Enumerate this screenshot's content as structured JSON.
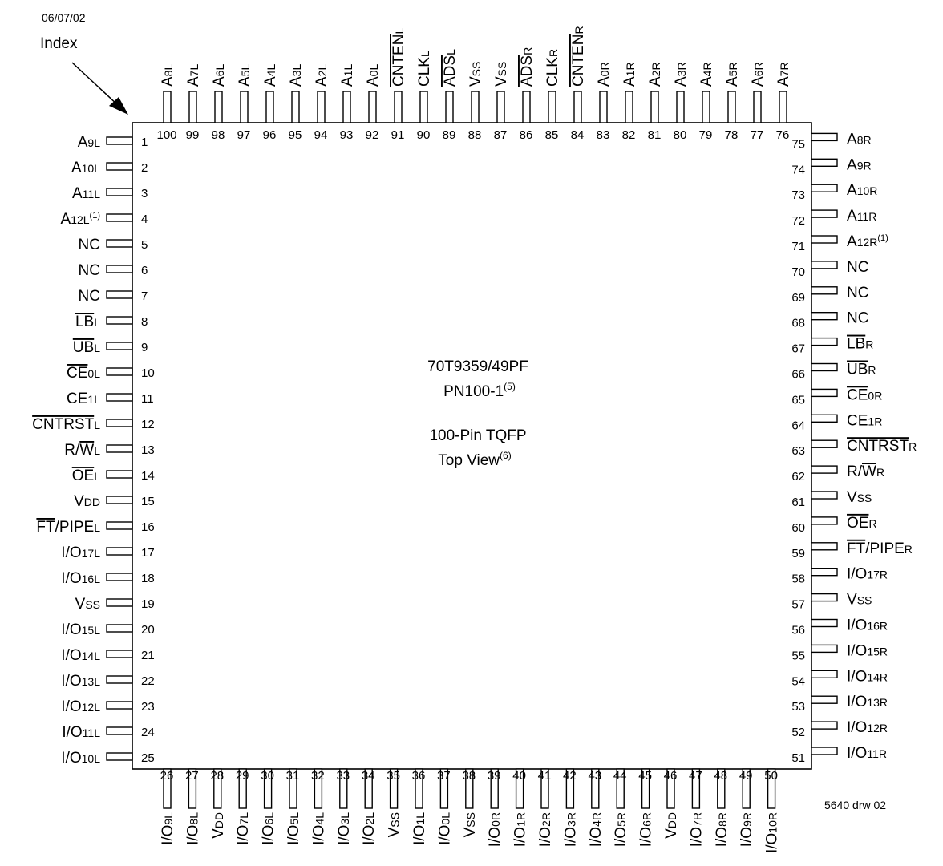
{
  "date": "06/07/02",
  "index_label": "Index",
  "chip": {
    "part_number": "70T9359/49PF",
    "package_code": "PN100-1",
    "package_code_note": "(5)",
    "package_desc": "100-Pin TQFP",
    "view": "Top View",
    "view_note": "(6)"
  },
  "drawing_number": "5640 drw 02",
  "pins_left": [
    {
      "n": "1",
      "name": [
        [
          "A",
          ""
        ],
        [
          "9L",
          "sub"
        ]
      ]
    },
    {
      "n": "2",
      "name": [
        [
          "A",
          ""
        ],
        [
          "10L",
          "sub"
        ]
      ]
    },
    {
      "n": "3",
      "name": [
        [
          "A",
          ""
        ],
        [
          "11L",
          "sub"
        ]
      ]
    },
    {
      "n": "4",
      "name": [
        [
          "A",
          ""
        ],
        [
          "12L",
          "sub"
        ],
        [
          "(1)",
          "sup"
        ]
      ]
    },
    {
      "n": "5",
      "name": [
        [
          "NC",
          ""
        ]
      ]
    },
    {
      "n": "6",
      "name": [
        [
          "NC",
          ""
        ]
      ]
    },
    {
      "n": "7",
      "name": [
        [
          "NC",
          ""
        ]
      ]
    },
    {
      "n": "8",
      "name": [
        [
          "LB",
          "over"
        ],
        [
          "L",
          "sub"
        ]
      ]
    },
    {
      "n": "9",
      "name": [
        [
          "UB",
          "over"
        ],
        [
          "L",
          "sub"
        ]
      ]
    },
    {
      "n": "10",
      "name": [
        [
          "CE",
          "over"
        ],
        [
          "0L",
          "sub"
        ]
      ]
    },
    {
      "n": "11",
      "name": [
        [
          "CE",
          ""
        ],
        [
          "1L",
          "sub"
        ]
      ]
    },
    {
      "n": "12",
      "name": [
        [
          "CNTRST",
          "over"
        ],
        [
          "L",
          "sub"
        ]
      ]
    },
    {
      "n": "13",
      "name": [
        [
          "R/",
          ""
        ],
        [
          "W",
          "over"
        ],
        [
          "L",
          "sub"
        ]
      ]
    },
    {
      "n": "14",
      "name": [
        [
          "OE",
          "over"
        ],
        [
          "L",
          "sub"
        ]
      ]
    },
    {
      "n": "15",
      "name": [
        [
          "V",
          ""
        ],
        [
          "DD",
          "sub"
        ]
      ]
    },
    {
      "n": "16",
      "name": [
        [
          "FT",
          "over"
        ],
        [
          "/PIPE",
          ""
        ],
        [
          "L",
          "sub"
        ]
      ]
    },
    {
      "n": "17",
      "name": [
        [
          "I/O",
          ""
        ],
        [
          "17L",
          "sub"
        ]
      ]
    },
    {
      "n": "18",
      "name": [
        [
          "I/O",
          ""
        ],
        [
          "16L",
          "sub"
        ]
      ]
    },
    {
      "n": "19",
      "name": [
        [
          "V",
          ""
        ],
        [
          "SS",
          "sub"
        ]
      ]
    },
    {
      "n": "20",
      "name": [
        [
          "I/O",
          ""
        ],
        [
          "15L",
          "sub"
        ]
      ]
    },
    {
      "n": "21",
      "name": [
        [
          "I/O",
          ""
        ],
        [
          "14L",
          "sub"
        ]
      ]
    },
    {
      "n": "22",
      "name": [
        [
          "I/O",
          ""
        ],
        [
          "13L",
          "sub"
        ]
      ]
    },
    {
      "n": "23",
      "name": [
        [
          "I/O",
          ""
        ],
        [
          "12L",
          "sub"
        ]
      ]
    },
    {
      "n": "24",
      "name": [
        [
          "I/O",
          ""
        ],
        [
          "11L",
          "sub"
        ]
      ]
    },
    {
      "n": "25",
      "name": [
        [
          "I/O",
          ""
        ],
        [
          "10L",
          "sub"
        ]
      ]
    }
  ],
  "pins_bottom": [
    {
      "n": "26",
      "name": [
        [
          "I/O",
          ""
        ],
        [
          "9L",
          "sub"
        ]
      ]
    },
    {
      "n": "27",
      "name": [
        [
          "I/O",
          ""
        ],
        [
          "8L",
          "sub"
        ]
      ]
    },
    {
      "n": "28",
      "name": [
        [
          "V",
          ""
        ],
        [
          "DD",
          "sub"
        ]
      ]
    },
    {
      "n": "29",
      "name": [
        [
          "I/O",
          ""
        ],
        [
          "7L",
          "sub"
        ]
      ]
    },
    {
      "n": "30",
      "name": [
        [
          "I/O",
          ""
        ],
        [
          "6L",
          "sub"
        ]
      ]
    },
    {
      "n": "31",
      "name": [
        [
          "I/O",
          ""
        ],
        [
          "5L",
          "sub"
        ]
      ]
    },
    {
      "n": "32",
      "name": [
        [
          "I/O",
          ""
        ],
        [
          "4L",
          "sub"
        ]
      ]
    },
    {
      "n": "33",
      "name": [
        [
          "I/O",
          ""
        ],
        [
          "3L",
          "sub"
        ]
      ]
    },
    {
      "n": "34",
      "name": [
        [
          "I/O",
          ""
        ],
        [
          "2L",
          "sub"
        ]
      ]
    },
    {
      "n": "35",
      "name": [
        [
          "V",
          ""
        ],
        [
          "SS",
          "sub"
        ]
      ]
    },
    {
      "n": "36",
      "name": [
        [
          "I/O",
          ""
        ],
        [
          "1L",
          "sub"
        ]
      ]
    },
    {
      "n": "37",
      "name": [
        [
          "I/O",
          ""
        ],
        [
          "0L",
          "sub"
        ]
      ]
    },
    {
      "n": "38",
      "name": [
        [
          "V",
          ""
        ],
        [
          "SS",
          "sub"
        ]
      ]
    },
    {
      "n": "39",
      "name": [
        [
          "I/O",
          ""
        ],
        [
          "0R",
          "sub"
        ]
      ]
    },
    {
      "n": "40",
      "name": [
        [
          "I/O",
          ""
        ],
        [
          "1R",
          "sub"
        ]
      ]
    },
    {
      "n": "41",
      "name": [
        [
          "I/O",
          ""
        ],
        [
          "2R",
          "sub"
        ]
      ]
    },
    {
      "n": "42",
      "name": [
        [
          "I/O",
          ""
        ],
        [
          "3R",
          "sub"
        ]
      ]
    },
    {
      "n": "43",
      "name": [
        [
          "I/O",
          ""
        ],
        [
          "4R",
          "sub"
        ]
      ]
    },
    {
      "n": "44",
      "name": [
        [
          "I/O",
          ""
        ],
        [
          "5R",
          "sub"
        ]
      ]
    },
    {
      "n": "45",
      "name": [
        [
          "I/O",
          ""
        ],
        [
          "6R",
          "sub"
        ]
      ]
    },
    {
      "n": "46",
      "name": [
        [
          "V",
          ""
        ],
        [
          "DD",
          "sub"
        ]
      ]
    },
    {
      "n": "47",
      "name": [
        [
          "I/O",
          ""
        ],
        [
          "7R",
          "sub"
        ]
      ]
    },
    {
      "n": "48",
      "name": [
        [
          "I/O",
          ""
        ],
        [
          "8R",
          "sub"
        ]
      ]
    },
    {
      "n": "49",
      "name": [
        [
          "I/O",
          ""
        ],
        [
          "9R",
          "sub"
        ]
      ]
    },
    {
      "n": "50",
      "name": [
        [
          "I/O",
          ""
        ],
        [
          "10R",
          "sub"
        ]
      ]
    }
  ],
  "pins_right": [
    {
      "n": "51",
      "name": [
        [
          "I/O",
          ""
        ],
        [
          "11R",
          "sub"
        ]
      ]
    },
    {
      "n": "52",
      "name": [
        [
          "I/O",
          ""
        ],
        [
          "12R",
          "sub"
        ]
      ]
    },
    {
      "n": "53",
      "name": [
        [
          "I/O",
          ""
        ],
        [
          "13R",
          "sub"
        ]
      ]
    },
    {
      "n": "54",
      "name": [
        [
          "I/O",
          ""
        ],
        [
          "14R",
          "sub"
        ]
      ]
    },
    {
      "n": "55",
      "name": [
        [
          "I/O",
          ""
        ],
        [
          "15R",
          "sub"
        ]
      ]
    },
    {
      "n": "56",
      "name": [
        [
          "I/O",
          ""
        ],
        [
          "16R",
          "sub"
        ]
      ]
    },
    {
      "n": "57",
      "name": [
        [
          "V",
          ""
        ],
        [
          "SS",
          "sub"
        ]
      ]
    },
    {
      "n": "58",
      "name": [
        [
          "I/O",
          ""
        ],
        [
          "17R",
          "sub"
        ]
      ]
    },
    {
      "n": "59",
      "name": [
        [
          "FT",
          "over"
        ],
        [
          "/PIPE",
          ""
        ],
        [
          "R",
          "sub"
        ]
      ]
    },
    {
      "n": "60",
      "name": [
        [
          "OE",
          "over"
        ],
        [
          "R",
          "sub"
        ]
      ]
    },
    {
      "n": "61",
      "name": [
        [
          "V",
          ""
        ],
        [
          "SS",
          "sub"
        ]
      ]
    },
    {
      "n": "62",
      "name": [
        [
          "R/",
          ""
        ],
        [
          "W",
          "over"
        ],
        [
          "R",
          "sub"
        ]
      ]
    },
    {
      "n": "63",
      "name": [
        [
          "CNTRST",
          "over"
        ],
        [
          "R",
          "sub"
        ]
      ]
    },
    {
      "n": "64",
      "name": [
        [
          "CE",
          ""
        ],
        [
          "1R",
          "sub"
        ]
      ]
    },
    {
      "n": "65",
      "name": [
        [
          "CE",
          "over"
        ],
        [
          "0R",
          "sub"
        ]
      ]
    },
    {
      "n": "66",
      "name": [
        [
          "UB",
          "over"
        ],
        [
          "R",
          "sub"
        ]
      ]
    },
    {
      "n": "67",
      "name": [
        [
          "LB",
          "over"
        ],
        [
          "R",
          "sub"
        ]
      ]
    },
    {
      "n": "68",
      "name": [
        [
          "NC",
          ""
        ]
      ]
    },
    {
      "n": "69",
      "name": [
        [
          "NC",
          ""
        ]
      ]
    },
    {
      "n": "70",
      "name": [
        [
          "NC",
          ""
        ]
      ]
    },
    {
      "n": "71",
      "name": [
        [
          "A",
          ""
        ],
        [
          "12R",
          "sub"
        ],
        [
          "(1)",
          "sup"
        ]
      ]
    },
    {
      "n": "72",
      "name": [
        [
          "A",
          ""
        ],
        [
          "11R",
          "sub"
        ]
      ]
    },
    {
      "n": "73",
      "name": [
        [
          "A",
          ""
        ],
        [
          "10R",
          "sub"
        ]
      ]
    },
    {
      "n": "74",
      "name": [
        [
          "A",
          ""
        ],
        [
          "9R",
          "sub"
        ]
      ]
    },
    {
      "n": "75",
      "name": [
        [
          "A",
          ""
        ],
        [
          "8R",
          "sub"
        ]
      ]
    }
  ],
  "pins_top": [
    {
      "n": "76",
      "name": [
        [
          "A",
          ""
        ],
        [
          "7R",
          "sub"
        ]
      ]
    },
    {
      "n": "77",
      "name": [
        [
          "A",
          ""
        ],
        [
          "6R",
          "sub"
        ]
      ]
    },
    {
      "n": "78",
      "name": [
        [
          "A",
          ""
        ],
        [
          "5R",
          "sub"
        ]
      ]
    },
    {
      "n": "79",
      "name": [
        [
          "A",
          ""
        ],
        [
          "4R",
          "sub"
        ]
      ]
    },
    {
      "n": "80",
      "name": [
        [
          "A",
          ""
        ],
        [
          "3R",
          "sub"
        ]
      ]
    },
    {
      "n": "81",
      "name": [
        [
          "A",
          ""
        ],
        [
          "2R",
          "sub"
        ]
      ]
    },
    {
      "n": "82",
      "name": [
        [
          "A",
          ""
        ],
        [
          "1R",
          "sub"
        ]
      ]
    },
    {
      "n": "83",
      "name": [
        [
          "A",
          ""
        ],
        [
          "0R",
          "sub"
        ]
      ]
    },
    {
      "n": "84",
      "name": [
        [
          "CNTEN",
          "over"
        ],
        [
          "R",
          "sub"
        ]
      ]
    },
    {
      "n": "85",
      "name": [
        [
          "CLK",
          ""
        ],
        [
          "R",
          "sub"
        ]
      ]
    },
    {
      "n": "86",
      "name": [
        [
          "ADS",
          "over"
        ],
        [
          "R",
          "sub"
        ]
      ]
    },
    {
      "n": "87",
      "name": [
        [
          "V",
          ""
        ],
        [
          "SS",
          "sub"
        ]
      ]
    },
    {
      "n": "88",
      "name": [
        [
          "V",
          ""
        ],
        [
          "SS",
          "sub"
        ]
      ]
    },
    {
      "n": "89",
      "name": [
        [
          "ADS",
          "over"
        ],
        [
          "L",
          "sub"
        ]
      ]
    },
    {
      "n": "90",
      "name": [
        [
          "CLK",
          ""
        ],
        [
          "L",
          "sub"
        ]
      ]
    },
    {
      "n": "91",
      "name": [
        [
          "CNTEN",
          "over"
        ],
        [
          "L",
          "sub"
        ]
      ]
    },
    {
      "n": "92",
      "name": [
        [
          "A",
          ""
        ],
        [
          "0L",
          "sub"
        ]
      ]
    },
    {
      "n": "93",
      "name": [
        [
          "A",
          ""
        ],
        [
          "1L",
          "sub"
        ]
      ]
    },
    {
      "n": "94",
      "name": [
        [
          "A",
          ""
        ],
        [
          "2L",
          "sub"
        ]
      ]
    },
    {
      "n": "95",
      "name": [
        [
          "A",
          ""
        ],
        [
          "3L",
          "sub"
        ]
      ]
    },
    {
      "n": "96",
      "name": [
        [
          "A",
          ""
        ],
        [
          "4L",
          "sub"
        ]
      ]
    },
    {
      "n": "97",
      "name": [
        [
          "A",
          ""
        ],
        [
          "5L",
          "sub"
        ]
      ]
    },
    {
      "n": "98",
      "name": [
        [
          "A",
          ""
        ],
        [
          "6L",
          "sub"
        ]
      ]
    },
    {
      "n": "99",
      "name": [
        [
          "A",
          ""
        ],
        [
          "7L",
          "sub"
        ]
      ]
    },
    {
      "n": "100",
      "name": [
        [
          "A",
          ""
        ],
        [
          "8L",
          "sub"
        ]
      ]
    }
  ]
}
